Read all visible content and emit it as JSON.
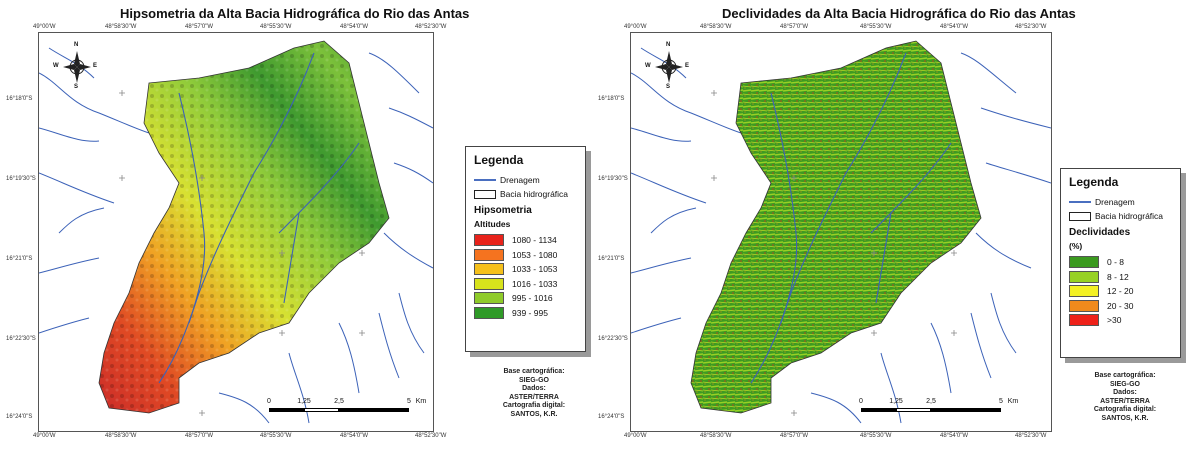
{
  "left_map": {
    "title": "Hipsometria da Alta Bacia Hidrográfica do Rio das Antas",
    "legend": {
      "title": "Legenda",
      "drainage_label": "Drenagem",
      "basin_label": "Bacia hidrográfica",
      "theme_title": "Hipsometria",
      "unit_label": "Altitudes",
      "classes": [
        {
          "label": "1080 - 1134",
          "color": "#e8231b"
        },
        {
          "label": "1053 - 1080",
          "color": "#f5731f"
        },
        {
          "label": "1033 - 1053",
          "color": "#f5c01b"
        },
        {
          "label": "1016 - 1033",
          "color": "#d8e31c"
        },
        {
          "label": "995 - 1016",
          "color": "#8fcb2a"
        },
        {
          "label": "939 - 995",
          "color": "#2f9a27"
        }
      ]
    },
    "top_coords": [
      "49°00'W",
      "48°58'30\"W",
      "48°57'0\"W",
      "48°55'30\"W",
      "48°54'0\"W",
      "48°52'30\"W"
    ],
    "left_coords": [
      "16°18'0\"S",
      "16°19'30\"S",
      "16°21'0\"S",
      "16°22'30\"S",
      "16°24'0\"S"
    ]
  },
  "right_map": {
    "title": "Declividades da Alta Bacia Hidrográfica do Rio das Antas",
    "legend": {
      "title": "Legenda",
      "drainage_label": "Drenagem",
      "basin_label": "Bacia hidrográfica",
      "theme_title": "Declividades",
      "unit_label": "(%)",
      "classes": [
        {
          "label": "0 - 8",
          "color": "#3b9a1f"
        },
        {
          "label": "8 - 12",
          "color": "#97d124"
        },
        {
          "label": "12 - 20",
          "color": "#f3f024"
        },
        {
          "label": "20 - 30",
          "color": "#f08a1c"
        },
        {
          "label": ">30",
          "color": "#ee2119"
        }
      ]
    },
    "top_coords": [
      "49°00'W",
      "48°58'30\"W",
      "48°57'0\"W",
      "48°55'30\"W",
      "48°54'0\"W",
      "48°52'30\"W"
    ],
    "left_coords": [
      "16°18'0\"S",
      "16°19'30\"S",
      "16°21'0\"S",
      "16°22'30\"S",
      "16°24'0\"S"
    ]
  },
  "credits": {
    "line1": "Base cartográfica:",
    "line2": "SIEG-GO",
    "line3": "Dados:",
    "line4": "ASTER/TERRA",
    "line5": "Cartografia digital:",
    "line6": "SANTOS, K.R."
  },
  "scale": {
    "ticks": [
      "0",
      "1,25",
      "2,5",
      "5"
    ],
    "unit": "Km"
  },
  "north_arrow": {
    "n": "N",
    "s": "S",
    "e": "E",
    "w": "W"
  },
  "colors": {
    "drainage": "#3c62b8",
    "frame": "#555555"
  }
}
